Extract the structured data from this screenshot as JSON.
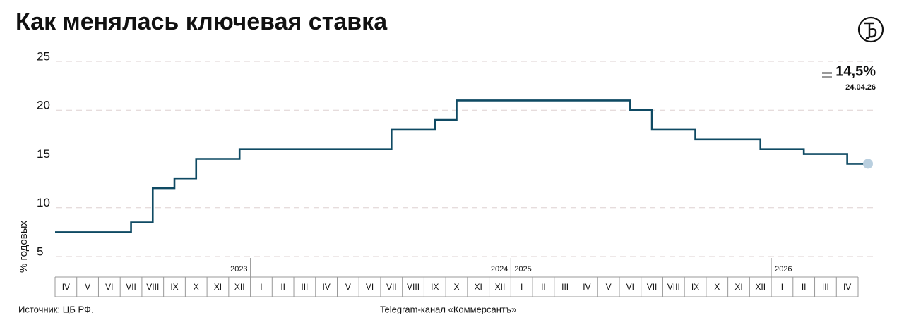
{
  "chart_data": {
    "type": "step-line",
    "title": "Как менялась ключевая ставка",
    "y_label": "% годовых",
    "categories": [
      "IV",
      "V",
      "VI",
      "VII",
      "VIII",
      "IX",
      "X",
      "XI",
      "XII",
      "I",
      "II",
      "III",
      "IV",
      "V",
      "VI",
      "VII",
      "VIII",
      "IX",
      "X",
      "XI",
      "XII",
      "I",
      "II",
      "III",
      "IV",
      "V",
      "VI",
      "VII",
      "VIII",
      "IX",
      "X",
      "XI",
      "XII",
      "I",
      "II",
      "III",
      "IV"
    ],
    "years": [
      "2023",
      "2024",
      "2025",
      "2026"
    ],
    "series": [
      {
        "color": "#0f4a63",
        "values": [
          7.5,
          7.5,
          7.5,
          8.5,
          12,
          13,
          15,
          15,
          16,
          16,
          16,
          16,
          16,
          16,
          16,
          18,
          18,
          19,
          21,
          21,
          21,
          21,
          21,
          21,
          21,
          21,
          20,
          18,
          18,
          17,
          17,
          17,
          16,
          16,
          15.5,
          15.5,
          14.5
        ]
      }
    ],
    "ylim": [
      5,
      25
    ],
    "yticks": [
      5,
      10,
      15,
      20,
      25
    ],
    "grid": true,
    "annotation": {
      "value": "14,5%",
      "date": "24.04.26"
    },
    "source": "Источник: ЦБ РФ.",
    "credit": "Telegram-канал «Коммерсантъ»"
  }
}
